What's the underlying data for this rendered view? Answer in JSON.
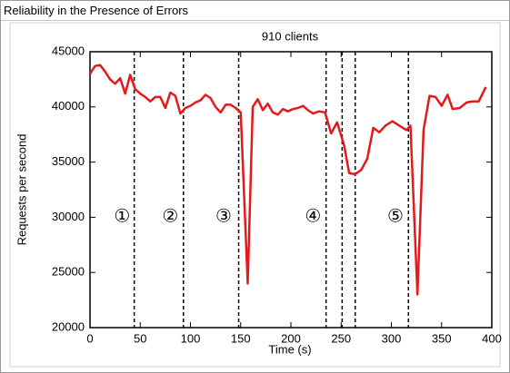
{
  "window_title": "Reliability in the Presence of Errors",
  "chart_data": {
    "type": "line",
    "title": "910 clients",
    "xlabel": "Time (s)",
    "ylabel": "Requests per second",
    "color": "#e31a1c",
    "x": [
      0,
      5,
      10,
      15,
      20,
      25,
      30,
      35,
      40,
      45,
      50,
      55,
      60,
      65,
      70,
      75,
      80,
      85,
      90,
      95,
      100,
      105,
      110,
      115,
      120,
      125,
      130,
      135,
      140,
      145,
      150,
      157,
      162,
      167,
      172,
      177,
      182,
      187,
      192,
      197,
      202,
      207,
      212,
      217,
      222,
      228,
      234,
      240,
      246,
      253,
      258,
      264,
      270,
      276,
      282,
      288,
      294,
      301,
      308,
      315,
      319,
      326,
      332,
      338,
      344,
      350,
      356,
      361,
      368,
      375,
      381,
      387,
      394
    ],
    "values": [
      43000,
      43700,
      43800,
      43200,
      42500,
      42100,
      42600,
      41200,
      42900,
      41600,
      41200,
      40900,
      40500,
      40900,
      40900,
      39900,
      41300,
      41000,
      39400,
      39900,
      40100,
      40400,
      40600,
      41100,
      40800,
      40000,
      39500,
      40200,
      40200,
      39900,
      39500,
      24000,
      40000,
      40700,
      39700,
      40300,
      39500,
      39300,
      39800,
      39600,
      39800,
      39900,
      40100,
      39700,
      39400,
      39600,
      39500,
      37600,
      38600,
      36500,
      34000,
      33900,
      34300,
      35300,
      38100,
      37700,
      38300,
      38700,
      38300,
      37900,
      38300,
      23000,
      37900,
      41000,
      40900,
      40100,
      41100,
      39800,
      39900,
      40400,
      40500,
      40500,
      41800
    ],
    "xlim": [
      0,
      400
    ],
    "ylim": [
      20000,
      45000
    ],
    "xticks": [
      0,
      50,
      100,
      150,
      200,
      250,
      300,
      350,
      400
    ],
    "yticks": [
      20000,
      25000,
      30000,
      35000,
      40000,
      45000
    ],
    "vlines": [
      44,
      93,
      148,
      235,
      251,
      264,
      317
    ],
    "annotations": [
      {
        "text": "①",
        "x": 32,
        "y": 30000
      },
      {
        "text": "②",
        "x": 80,
        "y": 30000
      },
      {
        "text": "③",
        "x": 133,
        "y": 30000
      },
      {
        "text": "④",
        "x": 222,
        "y": 30000
      },
      {
        "text": "⑤",
        "x": 304,
        "y": 30000
      }
    ]
  }
}
